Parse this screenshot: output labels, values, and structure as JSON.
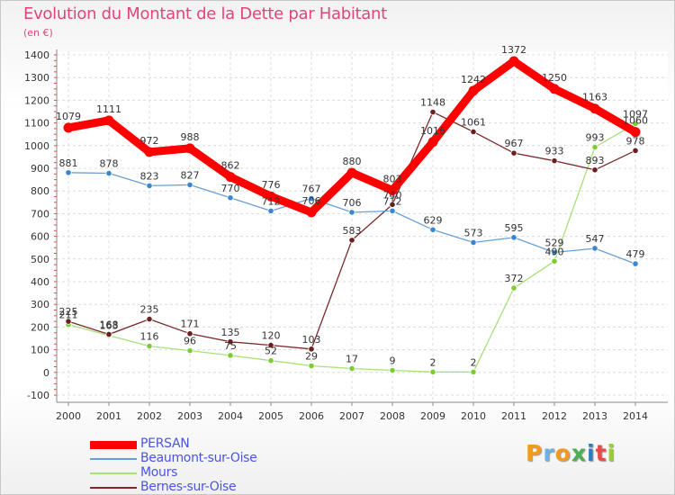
{
  "header": {
    "title": "Evolution du Montant de la Dette par Habitant",
    "subtitle": "(en €)"
  },
  "logo": {
    "text": "Proxiti",
    "colors": [
      "#f39a1f",
      "#6ab3e6",
      "#f39a1f",
      "#4caf50",
      "#2d7fc1",
      "#e84a4a",
      "#9acd32"
    ]
  },
  "chart_data": {
    "type": "line",
    "x": [
      "2000",
      "2001",
      "2002",
      "2003",
      "2004",
      "2005",
      "2006",
      "2007",
      "2008",
      "2009",
      "2010",
      "2011",
      "2012",
      "2013",
      "2014"
    ],
    "ylim": [
      -100,
      1400
    ],
    "yticks": [
      -100,
      0,
      100,
      200,
      300,
      400,
      500,
      600,
      700,
      800,
      900,
      1000,
      1100,
      1200,
      1300,
      1400
    ],
    "grid": true,
    "legend_position": "bottom-left",
    "series": [
      {
        "name": "PERSAN",
        "color": "#ff0000",
        "point_color": "#ff0000",
        "values": [
          1079,
          1111,
          972,
          988,
          862,
          776,
          706,
          880,
          803,
          1016,
          1242,
          1372,
          1250,
          1163,
          1060
        ],
        "labels": [
          "1079",
          "1111",
          "972",
          "988",
          "862",
          "776",
          "706",
          "880",
          "803",
          "1016",
          "1242",
          "1372",
          "1250",
          "1163",
          "1060"
        ]
      },
      {
        "name": "Beaumont-sur-Oise",
        "color": "#6a9fd4",
        "point_color": "#3a86d1",
        "values": [
          881,
          878,
          823,
          827,
          770,
          712,
          767,
          706,
          712,
          629,
          573,
          595,
          529,
          547,
          479
        ],
        "labels": [
          "881",
          "878",
          "823",
          "827",
          "770",
          "712",
          "767",
          "706",
          "712",
          "629",
          "573",
          "595",
          "529",
          "547",
          "479"
        ]
      },
      {
        "name": "Mours",
        "color": "#a8e07a",
        "point_color": "#7ccc33",
        "values": [
          211,
          163,
          116,
          96,
          75,
          52,
          29,
          17,
          9,
          2,
          2,
          372,
          490,
          993,
          1097
        ],
        "labels": [
          "211",
          "163",
          "116",
          "96",
          "75",
          "52",
          "29",
          "17",
          "9",
          "2",
          "2",
          "372",
          "490",
          "993",
          "1097"
        ]
      },
      {
        "name": "Bernes-sur-Oise",
        "color": "#7a2a2a",
        "point_color": "#6b1e1e",
        "values": [
          225,
          168,
          235,
          171,
          135,
          120,
          103,
          583,
          740,
          1148,
          1061,
          967,
          933,
          893,
          978
        ],
        "labels": [
          "225",
          "168",
          "235",
          "171",
          "135",
          "120",
          "103",
          "583",
          "740",
          "1148",
          "1061",
          "967",
          "933",
          "893",
          "978"
        ]
      }
    ]
  }
}
